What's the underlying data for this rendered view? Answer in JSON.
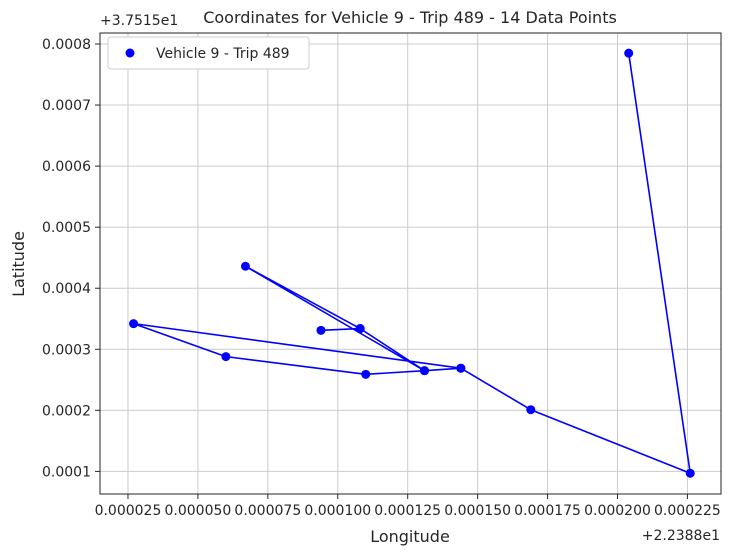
{
  "chart_data": {
    "type": "line",
    "title": "Coordinates for Vehicle 9 - Trip 489 - 14 Data Points",
    "xlabel": "Longitude",
    "ylabel": "Latitude",
    "x_offset_label": "+2.2388e1",
    "y_offset_label": "+3.7515e1",
    "xlim": [
      1.5e-05,
      0.000237
    ],
    "ylim": [
      6.3e-05,
      0.000818
    ],
    "x_ticks": [
      2.5e-05,
      5e-05,
      7.5e-05,
      0.0001,
      0.000125,
      0.00015,
      0.000175,
      0.0002,
      0.000225
    ],
    "x_tick_labels": [
      "0.000025",
      "0.000050",
      "0.000075",
      "0.000100",
      "0.000125",
      "0.000150",
      "0.000175",
      "0.000200",
      "0.000225"
    ],
    "y_ticks": [
      0.0001,
      0.0002,
      0.0003,
      0.0004,
      0.0005,
      0.0006,
      0.0007,
      0.0008
    ],
    "y_tick_labels": [
      "0.0001",
      "0.0002",
      "0.0003",
      "0.0004",
      "0.0005",
      "0.0006",
      "0.0007",
      "0.0008"
    ],
    "grid": true,
    "legend_position": "top-left",
    "series": [
      {
        "name": "Vehicle 9 - Trip 489",
        "color": "#0000ff",
        "x": [
          0.000204,
          0.000226,
          0.000169,
          0.000144,
          0.000131,
          6.7e-05,
          0.000108,
          9.4e-05,
          0.000108,
          0.000131,
          0.00011,
          6e-05,
          2.7e-05,
          0.000144
        ],
        "y": [
          0.000785,
          9.7e-05,
          0.000201,
          0.000269,
          0.000265,
          0.000436,
          0.000334,
          0.000331,
          0.000334,
          0.000265,
          0.000259,
          0.000288,
          0.000342,
          0.000269
        ]
      }
    ]
  }
}
